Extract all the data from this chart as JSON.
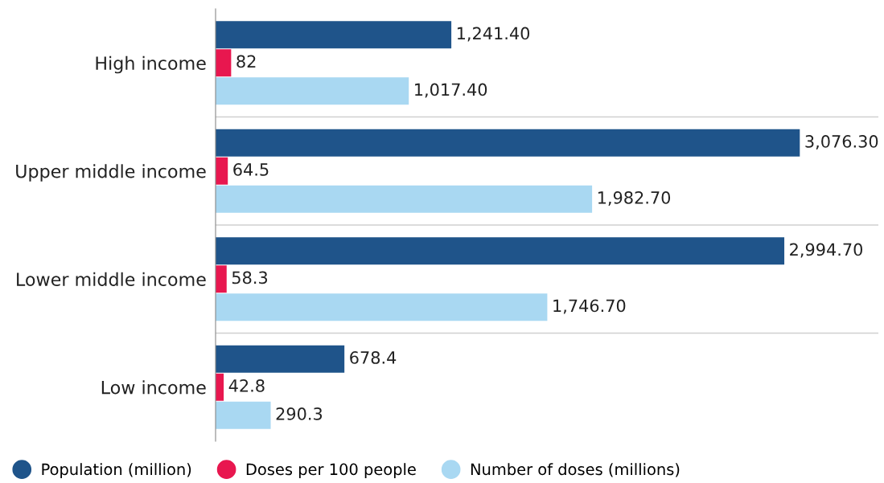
{
  "chart_data": {
    "type": "bar",
    "orientation": "horizontal",
    "categories": [
      "High income",
      "Upper middle income",
      "Lower middle income",
      "Low income"
    ],
    "series": [
      {
        "name": "Population (million)",
        "color": "#1f548a",
        "values": [
          1241.4,
          3076.3,
          2994.7,
          678.4
        ],
        "value_labels": [
          "1,241.40",
          "3,076.30",
          "2,994.70",
          "678.4"
        ]
      },
      {
        "name": "Doses per 100 people",
        "color": "#e8174f",
        "values": [
          82,
          64.5,
          58.3,
          42.8
        ],
        "value_labels": [
          "82",
          "64.5",
          "58.3",
          "42.8"
        ]
      },
      {
        "name": "Number of doses (millions)",
        "color": "#a9d8f2",
        "values": [
          1017.4,
          1982.7,
          1746.7,
          290.3
        ],
        "value_labels": [
          "1,017.40",
          "1,982.70",
          "1,746.70",
          "290.3"
        ]
      }
    ],
    "xlim": [
      0,
      3490
    ],
    "tick_labels": "y",
    "legend": "bottom",
    "grid": false
  }
}
